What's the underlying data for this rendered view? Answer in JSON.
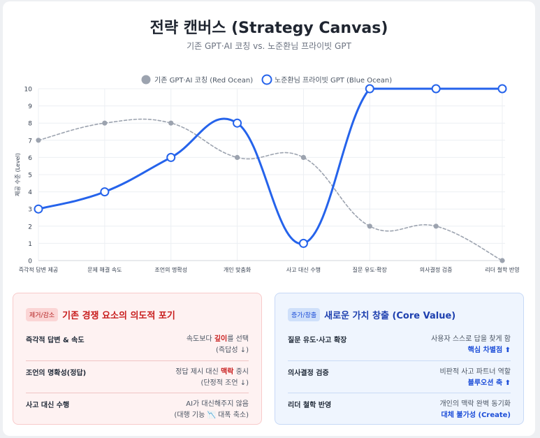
{
  "header": {
    "title": "전략 캔버스 (Strategy Canvas)",
    "subtitle": "기존 GPT·AI 코칭 vs. 노준환님 프라이빗 GPT"
  },
  "chart_data": {
    "type": "line",
    "ylabel": "제공 수준 (Level)",
    "ylim": [
      0,
      10
    ],
    "yticks": [
      "0",
      "1",
      "2",
      "3",
      "4",
      "5",
      "6",
      "7",
      "8",
      "9",
      "10"
    ],
    "categories": [
      "즉각적 답변 제공",
      "문제 해결 속도",
      "조언의 명확성",
      "개인 맞춤화",
      "사고 대신 수행",
      "질문 유도·확장",
      "의사결정 검증",
      "리더 철학 반영"
    ],
    "legend_position": "top",
    "grid": true,
    "series": [
      {
        "name": "기존 GPT·AI 코칭 (Red Ocean)",
        "values": [
          7,
          8,
          8,
          6,
          6,
          2,
          2,
          0
        ],
        "color": "#9ca3af",
        "style": "dashed"
      },
      {
        "name": "노준환님 프라이빗 GPT (Blue Ocean)",
        "values": [
          3,
          4,
          6,
          8,
          1,
          10,
          10,
          10
        ],
        "color": "#2563eb",
        "style": "solid"
      }
    ]
  },
  "panels": {
    "eliminate": {
      "badge": "제거/감소",
      "title": "기존 경쟁 요소의 의도적 포기",
      "color": "#c81e1e",
      "rows": [
        {
          "label": "즉각적 답변 & 속도",
          "pre": "속도보다 ",
          "hl": "깊이",
          "post": "를 선택",
          "line2": "(즉답성 ↓)"
        },
        {
          "label": "조언의 명확성(정답)",
          "pre": "정답 제시 대신 ",
          "hl": "맥락",
          "post": " 중시",
          "line2": "(단정적 조언 ↓)"
        },
        {
          "label": "사고 대신 수행",
          "pre": "AI가 대신해주지 않음",
          "hl": "",
          "post": "",
          "line2": "(대행 기능 📉 대폭 축소)"
        }
      ]
    },
    "create": {
      "badge": "증가/창출",
      "title": "새로운 가치 창출 (Core Value)",
      "color": "#1e40af",
      "rows": [
        {
          "label": "질문 유도·사고 확장",
          "line1": "사용자 스스로 답을 찾게 함",
          "line2": "핵심 차별점 ⬆"
        },
        {
          "label": "의사결정 검증",
          "line1": "비판적 사고 파트너 역할",
          "line2": "블루오션 축 ⬆"
        },
        {
          "label": "리더 철학 반영",
          "line1": "개인의 맥락 완벽 동기화",
          "line2": "대체 불가성 (Create)"
        }
      ]
    }
  }
}
